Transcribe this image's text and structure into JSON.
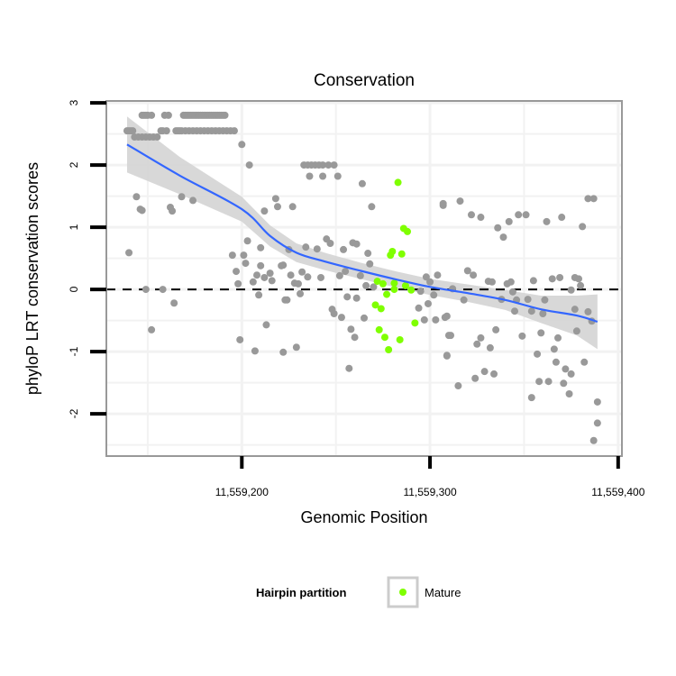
{
  "chart_data": {
    "type": "scatter",
    "title": "Conservation",
    "xlabel": "Genomic Position",
    "ylabel": "phyloP LRT conservation scores",
    "xlim": [
      11559128,
      11559402
    ],
    "ylim": [
      -2.68,
      3.03
    ],
    "x_ticks": [
      11559200,
      11559300,
      11559400
    ],
    "x_tick_labels": [
      "11,559,200",
      "11,559,300",
      "11,559,400"
    ],
    "y_ticks": [
      3,
      2,
      1,
      0,
      -1,
      -2
    ],
    "y_tick_labels": [
      "3",
      "2",
      "1",
      "0",
      "-1",
      "-2"
    ],
    "grid": true,
    "reference_line": {
      "y": 0,
      "style": "dashed"
    },
    "legend": {
      "title": "Hairpin partition",
      "position": "bottom",
      "entries": [
        "Mature"
      ]
    },
    "colors": {
      "other": "#999999",
      "mature": "#7FFF00",
      "smooth": "#3366FF",
      "ci": "#D4D4D4",
      "panel_border": "#999999"
    },
    "series": [
      {
        "name": "Other",
        "points": [
          [
            11559147,
            2.8
          ],
          [
            11559148,
            2.8
          ],
          [
            11559149,
            2.8
          ],
          [
            11559150,
            2.8
          ],
          [
            11559152,
            2.8
          ],
          [
            11559159,
            2.8
          ],
          [
            11559161,
            2.8
          ],
          [
            11559169,
            2.8
          ],
          [
            11559170,
            2.8
          ],
          [
            11559171,
            2.8
          ],
          [
            11559172,
            2.8
          ],
          [
            11559173,
            2.8
          ],
          [
            11559174,
            2.8
          ],
          [
            11559175,
            2.8
          ],
          [
            11559176,
            2.8
          ],
          [
            11559177,
            2.8
          ],
          [
            11559178,
            2.8
          ],
          [
            11559179,
            2.8
          ],
          [
            11559180,
            2.8
          ],
          [
            11559181,
            2.8
          ],
          [
            11559182,
            2.8
          ],
          [
            11559183,
            2.8
          ],
          [
            11559184,
            2.8
          ],
          [
            11559185,
            2.8
          ],
          [
            11559186,
            2.8
          ],
          [
            11559187,
            2.8
          ],
          [
            11559188,
            2.8
          ],
          [
            11559189,
            2.8
          ],
          [
            11559190,
            2.8
          ],
          [
            11559191,
            2.8
          ],
          [
            11559139,
            2.55
          ],
          [
            11559140,
            2.55
          ],
          [
            11559141,
            2.55
          ],
          [
            11559142,
            2.55
          ],
          [
            11559157,
            2.55
          ],
          [
            11559158,
            2.55
          ],
          [
            11559160,
            2.55
          ],
          [
            11559165,
            2.55
          ],
          [
            11559166,
            2.55
          ],
          [
            11559167,
            2.55
          ],
          [
            11559168,
            2.55
          ],
          [
            11559170,
            2.55
          ],
          [
            11559172,
            2.55
          ],
          [
            11559174,
            2.55
          ],
          [
            11559176,
            2.55
          ],
          [
            11559178,
            2.55
          ],
          [
            11559180,
            2.55
          ],
          [
            11559182,
            2.55
          ],
          [
            11559184,
            2.55
          ],
          [
            11559186,
            2.55
          ],
          [
            11559188,
            2.55
          ],
          [
            11559190,
            2.55
          ],
          [
            11559192,
            2.55
          ],
          [
            11559194,
            2.55
          ],
          [
            11559196,
            2.55
          ],
          [
            11559143,
            2.45
          ],
          [
            11559145,
            2.45
          ],
          [
            11559147,
            2.45
          ],
          [
            11559149,
            2.45
          ],
          [
            11559151,
            2.45
          ],
          [
            11559153,
            2.45
          ],
          [
            11559155,
            2.45
          ],
          [
            11559140,
            0.59
          ],
          [
            11559144,
            1.49
          ],
          [
            11559146,
            1.29
          ],
          [
            11559147,
            1.27
          ],
          [
            11559149,
            0
          ],
          [
            11559152,
            -0.65
          ],
          [
            11559158,
            0
          ],
          [
            11559164,
            -0.22
          ],
          [
            11559162,
            1.32
          ],
          [
            11559163,
            1.26
          ],
          [
            11559168,
            1.49
          ],
          [
            11559174,
            1.43
          ],
          [
            11559200,
            2.33
          ],
          [
            11559204,
            2.0
          ],
          [
            11559218,
            1.46
          ],
          [
            11559219,
            1.33
          ],
          [
            11559212,
            1.26
          ],
          [
            11559203,
            0.78
          ],
          [
            11559210,
            0.67
          ],
          [
            11559195,
            0.55
          ],
          [
            11559201,
            0.55
          ],
          [
            11559202,
            0.42
          ],
          [
            11559197,
            0.29
          ],
          [
            11559210,
            0.38
          ],
          [
            11559208,
            0.23
          ],
          [
            11559215,
            0.26
          ],
          [
            11559222,
            0.39
          ],
          [
            11559198,
            0.09
          ],
          [
            11559199,
            -0.81
          ],
          [
            11559207,
            -0.99
          ],
          [
            11559213,
            -0.57
          ],
          [
            11559209,
            -0.09
          ],
          [
            11559222,
            -1.01
          ],
          [
            11559223,
            -0.17
          ],
          [
            11559206,
            0.12
          ],
          [
            11559212,
            0.19
          ],
          [
            11559216,
            0.14
          ],
          [
            11559233,
            2.0
          ],
          [
            11559235,
            2.0
          ],
          [
            11559237,
            2.0
          ],
          [
            11559239,
            2.0
          ],
          [
            11559241,
            2.0
          ],
          [
            11559243,
            2.0
          ],
          [
            11559246,
            2.0
          ],
          [
            11559249,
            2.0
          ],
          [
            11559236,
            1.82
          ],
          [
            11559243,
            1.82
          ],
          [
            11559251,
            1.82
          ],
          [
            11559264,
            1.7
          ],
          [
            11559269,
            1.33
          ],
          [
            11559307,
            1.35
          ],
          [
            11559227,
            1.33
          ],
          [
            11559225,
            0.64
          ],
          [
            11559234,
            0.68
          ],
          [
            11559240,
            0.65
          ],
          [
            11559245,
            0.81
          ],
          [
            11559247,
            0.74
          ],
          [
            11559254,
            0.64
          ],
          [
            11559259,
            0.75
          ],
          [
            11559261,
            0.73
          ],
          [
            11559267,
            0.58
          ],
          [
            11559268,
            0.41
          ],
          [
            11559221,
            0.38
          ],
          [
            11559226,
            0.23
          ],
          [
            11559232,
            0.28
          ],
          [
            11559235,
            0.2
          ],
          [
            11559242,
            0.19
          ],
          [
            11559252,
            0.22
          ],
          [
            11559255,
            0.29
          ],
          [
            11559263,
            0.22
          ],
          [
            11559228,
            0.1
          ],
          [
            11559230,
            0.09
          ],
          [
            11559266,
            0.06
          ],
          [
            11559270,
            0.04
          ],
          [
            11559231,
            -0.07
          ],
          [
            11559224,
            -0.17
          ],
          [
            11559256,
            -0.12
          ],
          [
            11559261,
            -0.14
          ],
          [
            11559248,
            -0.32
          ],
          [
            11559249,
            -0.39
          ],
          [
            11559253,
            -0.45
          ],
          [
            11559265,
            -0.46
          ],
          [
            11559258,
            -0.64
          ],
          [
            11559260,
            -0.77
          ],
          [
            11559229,
            -0.93
          ],
          [
            11559257,
            -1.27
          ],
          [
            11559298,
            0.2
          ],
          [
            11559304,
            0.23
          ],
          [
            11559300,
            0.12
          ],
          [
            11559294,
            -0.3
          ],
          [
            11559299,
            -0.23
          ],
          [
            11559302,
            -0.09
          ],
          [
            11559297,
            -0.49
          ],
          [
            11559303,
            -0.49
          ],
          [
            11559308,
            -0.45
          ],
          [
            11559295,
            -0.03
          ],
          [
            11559310,
            -0.74
          ],
          [
            11559309,
            -1.07
          ],
          [
            11559307,
            1.38
          ],
          [
            11559316,
            1.42
          ],
          [
            11559322,
            1.2
          ],
          [
            11559327,
            1.16
          ],
          [
            11559336,
            0.99
          ],
          [
            11559339,
            0.84
          ],
          [
            11559342,
            1.09
          ],
          [
            11559347,
            1.2
          ],
          [
            11559351,
            1.2
          ],
          [
            11559362,
            1.09
          ],
          [
            11559370,
            1.16
          ],
          [
            11559381,
            1.01
          ],
          [
            11559384,
            1.46
          ],
          [
            11559387,
            1.46
          ],
          [
            11559320,
            0.3
          ],
          [
            11559323,
            0.23
          ],
          [
            11559331,
            0.13
          ],
          [
            11559333,
            0.12
          ],
          [
            11559341,
            0.09
          ],
          [
            11559343,
            0.12
          ],
          [
            11559344,
            -0.04
          ],
          [
            11559355,
            0.14
          ],
          [
            11559365,
            0.17
          ],
          [
            11559369,
            0.19
          ],
          [
            11559377,
            0.19
          ],
          [
            11559379,
            0.17
          ],
          [
            11559375,
            -0.01
          ],
          [
            11559380,
            0.06
          ],
          [
            11559312,
            0.01
          ],
          [
            11559318,
            -0.17
          ],
          [
            11559338,
            -0.16
          ],
          [
            11559346,
            -0.17
          ],
          [
            11559352,
            -0.16
          ],
          [
            11559361,
            -0.17
          ],
          [
            11559345,
            -0.35
          ],
          [
            11559354,
            -0.35
          ],
          [
            11559360,
            -0.39
          ],
          [
            11559377,
            -0.32
          ],
          [
            11559384,
            -0.36
          ],
          [
            11559386,
            -0.51
          ],
          [
            11559309,
            -0.43
          ],
          [
            11559311,
            -0.74
          ],
          [
            11559325,
            -0.88
          ],
          [
            11559327,
            -0.78
          ],
          [
            11559332,
            -0.94
          ],
          [
            11559335,
            -0.65
          ],
          [
            11559349,
            -0.75
          ],
          [
            11559359,
            -0.7
          ],
          [
            11559368,
            -0.78
          ],
          [
            11559366,
            -0.96
          ],
          [
            11559378,
            -0.67
          ],
          [
            11559309,
            -1.06
          ],
          [
            11559357,
            -1.04
          ],
          [
            11559367,
            -1.17
          ],
          [
            11559382,
            -1.17
          ],
          [
            11559372,
            -1.28
          ],
          [
            11559375,
            -1.36
          ],
          [
            11559324,
            -1.43
          ],
          [
            11559329,
            -1.32
          ],
          [
            11559334,
            -1.36
          ],
          [
            11559315,
            -1.55
          ],
          [
            11559358,
            -1.48
          ],
          [
            11559363,
            -1.48
          ],
          [
            11559371,
            -1.51
          ],
          [
            11559354,
            -1.74
          ],
          [
            11559374,
            -1.68
          ],
          [
            11559389,
            -1.81
          ],
          [
            11559389,
            -2.15
          ],
          [
            11559387,
            -2.43
          ]
        ]
      },
      {
        "name": "Mature",
        "points": [
          [
            11559283,
            1.72
          ],
          [
            11559286,
            0.98
          ],
          [
            11559288,
            0.93
          ],
          [
            11559280,
            0.61
          ],
          [
            11559279,
            0.55
          ],
          [
            11559285,
            0.57
          ],
          [
            11559272,
            0.13
          ],
          [
            11559275,
            0.09
          ],
          [
            11559281,
            0.1
          ],
          [
            11559287,
            0.06
          ],
          [
            11559290,
            -0.01
          ],
          [
            11559281,
            0
          ],
          [
            11559277,
            -0.08
          ],
          [
            11559271,
            -0.25
          ],
          [
            11559274,
            -0.31
          ],
          [
            11559292,
            -0.54
          ],
          [
            11559273,
            -0.65
          ],
          [
            11559276,
            -0.77
          ],
          [
            11559284,
            -0.81
          ],
          [
            11559278,
            -0.97
          ]
        ]
      }
    ],
    "smooth": {
      "x": [
        11559139,
        11559167,
        11559200,
        11559215,
        11559229,
        11559244,
        11559263,
        11559282,
        11559300,
        11559320,
        11559340,
        11559359,
        11559378,
        11559389
      ],
      "y": [
        2.33,
        1.83,
        1.29,
        0.86,
        0.59,
        0.45,
        0.3,
        0.16,
        0.04,
        -0.06,
        -0.17,
        -0.32,
        -0.42,
        -0.52
      ],
      "ci_half": [
        0.45,
        0.3,
        0.2,
        0.17,
        0.15,
        0.14,
        0.13,
        0.13,
        0.13,
        0.14,
        0.16,
        0.22,
        0.32,
        0.44
      ]
    }
  }
}
